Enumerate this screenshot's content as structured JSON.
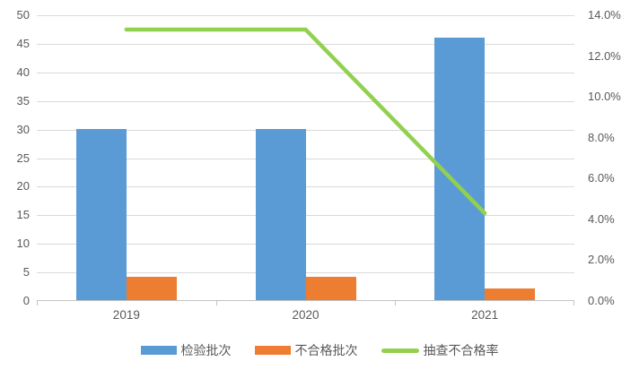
{
  "chart_data": {
    "type": "combo-bar-line",
    "title": "",
    "categories": [
      "2019",
      "2020",
      "2021"
    ],
    "series": [
      {
        "name": "检验批次",
        "type": "bar",
        "axis": "left",
        "color": "#5B9BD5",
        "values": [
          30,
          30,
          46
        ]
      },
      {
        "name": "不合格批次",
        "type": "bar",
        "axis": "left",
        "color": "#ED7D31",
        "values": [
          4,
          4,
          2
        ]
      },
      {
        "name": "抽查不合格率",
        "type": "line",
        "axis": "right",
        "color": "#92D050",
        "values_percent": [
          13.3,
          13.3,
          4.3
        ]
      }
    ],
    "left_axis": {
      "min": 0,
      "max": 50,
      "step": 5,
      "tick_labels": [
        "0",
        "5",
        "10",
        "15",
        "20",
        "25",
        "30",
        "35",
        "40",
        "45",
        "50"
      ]
    },
    "right_axis": {
      "min": 0,
      "max": 14,
      "step": 2,
      "tick_labels": [
        "0.0%",
        "2.0%",
        "4.0%",
        "6.0%",
        "8.0%",
        "10.0%",
        "12.0%",
        "14.0%"
      ]
    },
    "grid": true,
    "legend_position": "bottom",
    "colors": {
      "grid": "#D9D9D9",
      "axis_line": "#C3C3C3",
      "text": "#595959"
    }
  }
}
